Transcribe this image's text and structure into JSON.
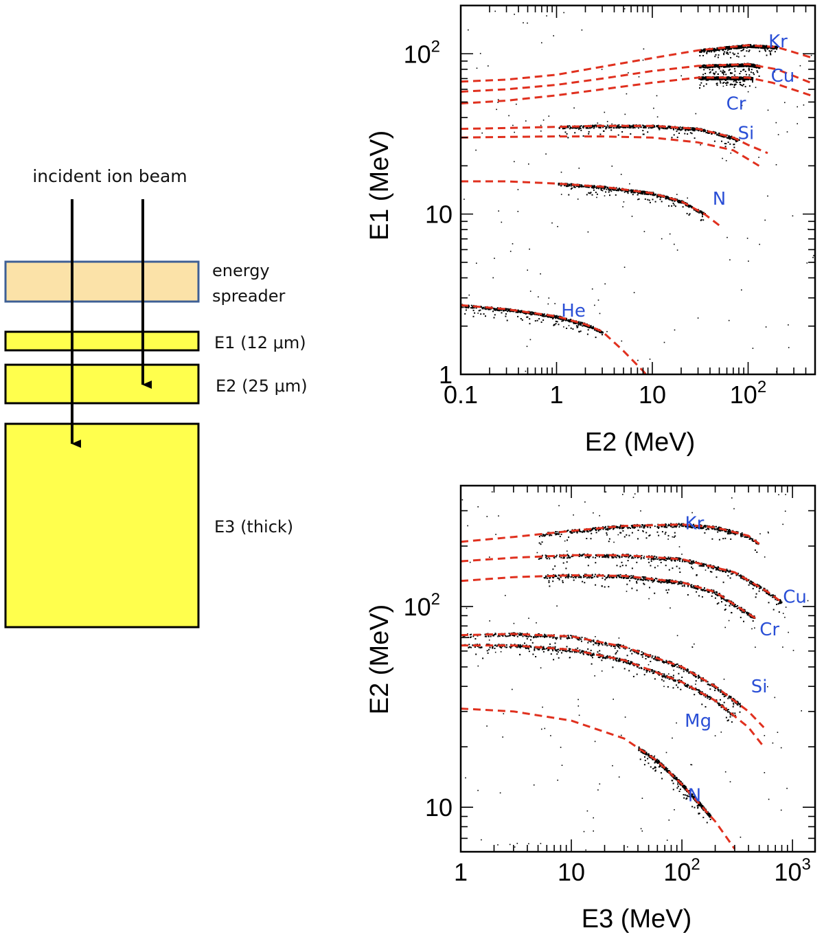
{
  "diagram": {
    "beam_label": "incident ion beam",
    "spreader_label_1": "energy",
    "spreader_label_2": "spreader",
    "e1_label": "E1 (12 μm)",
    "e2_label": "E2 (25 μm)",
    "e3_label": "E3 (thick)",
    "colors": {
      "spreader_fill": "#fbe2a8",
      "spreader_border": "#3e5f95",
      "detector_fill": "#ffff4d",
      "arrow": "#000000"
    }
  },
  "chart_data": [
    {
      "type": "scatter",
      "title": "",
      "xlabel": "E2 (MeV)",
      "ylabel": "E1 (MeV)",
      "xscale": "log",
      "yscale": "log",
      "xlim": [
        0.1,
        500
      ],
      "ylim": [
        1,
        200
      ],
      "xticks": [
        {
          "v": 0.1,
          "base": "0.1",
          "exp": ""
        },
        {
          "v": 1,
          "base": "1",
          "exp": ""
        },
        {
          "v": 10,
          "base": "10",
          "exp": ""
        },
        {
          "v": 100,
          "base": "10",
          "exp": "2"
        }
      ],
      "yticks": [
        {
          "v": 1,
          "base": "1",
          "exp": ""
        },
        {
          "v": 10,
          "base": "10",
          "exp": ""
        },
        {
          "v": 100,
          "base": "10",
          "exp": "2"
        }
      ],
      "line_color": "#e0301e",
      "point_color": "#000000",
      "series": [
        {
          "name": "Kr",
          "label_at": [
            205,
            120
          ],
          "curve": [
            [
              0.1,
              67
            ],
            [
              0.3,
              69
            ],
            [
              1,
              74
            ],
            [
              3,
              83
            ],
            [
              10,
              94
            ],
            [
              30,
              105
            ],
            [
              100,
              113
            ],
            [
              200,
              110
            ],
            [
              450,
              95
            ]
          ],
          "data_range": [
            30,
            200
          ]
        },
        {
          "name": "Cu",
          "label_at": [
            230,
            73
          ],
          "curve": [
            [
              0.1,
              58
            ],
            [
              0.3,
              60
            ],
            [
              1,
              64
            ],
            [
              3,
              70
            ],
            [
              10,
              78
            ],
            [
              30,
              84
            ],
            [
              100,
              86
            ],
            [
              200,
              80
            ],
            [
              450,
              66
            ]
          ],
          "data_range": [
            30,
            130
          ]
        },
        {
          "name": "Cr",
          "label_at": [
            75,
            49
          ],
          "curve": [
            [
              0.1,
              49
            ],
            [
              0.3,
              51
            ],
            [
              1,
              55
            ],
            [
              3,
              60
            ],
            [
              10,
              66
            ],
            [
              30,
              71
            ],
            [
              100,
              71
            ],
            [
              180,
              66
            ],
            [
              450,
              55
            ]
          ],
          "data_range": [
            30,
            110
          ]
        },
        {
          "name": "Si",
          "label_at": [
            95,
            32
          ],
          "curve": [
            [
              0.1,
              34
            ],
            [
              0.3,
              34.4
            ],
            [
              1,
              35
            ],
            [
              3,
              35.5
            ],
            [
              10,
              35.5
            ],
            [
              30,
              34
            ],
            [
              70,
              30
            ],
            [
              100,
              27
            ],
            [
              160,
              24
            ]
          ],
          "data_range": [
            1,
            80
          ]
        },
        {
          "name": "",
          "label_at": null,
          "curve": [
            [
              0.1,
              30
            ],
            [
              0.3,
              30.3
            ],
            [
              1,
              30.5
            ],
            [
              3,
              30.5
            ],
            [
              10,
              30
            ],
            [
              30,
              28
            ],
            [
              70,
              25
            ],
            [
              100,
              22
            ],
            [
              130,
              20
            ]
          ],
          "data_range": null
        },
        {
          "name": "N",
          "label_at": [
            50,
            12.5
          ],
          "curve": [
            [
              0.1,
              16
            ],
            [
              0.3,
              16
            ],
            [
              1,
              15.5
            ],
            [
              3,
              14.8
            ],
            [
              10,
              13.5
            ],
            [
              20,
              12
            ],
            [
              35,
              10
            ],
            [
              50,
              8.5
            ]
          ],
          "data_range": [
            1,
            35
          ]
        },
        {
          "name": "He",
          "label_at": [
            1.5,
            2.5
          ],
          "curve": [
            [
              0.1,
              2.7
            ],
            [
              0.3,
              2.55
            ],
            [
              1,
              2.3
            ],
            [
              2,
              2.05
            ],
            [
              3,
              1.85
            ],
            [
              5,
              1.4
            ],
            [
              8,
              1.05
            ],
            [
              10,
              0.9
            ]
          ],
          "data_range": [
            0.1,
            3
          ]
        }
      ]
    },
    {
      "type": "scatter",
      "title": "",
      "xlabel": "E3 (MeV)",
      "ylabel": "E2 (MeV)",
      "xscale": "log",
      "yscale": "log",
      "xlim": [
        1,
        1600
      ],
      "ylim": [
        6,
        400
      ],
      "xticks": [
        {
          "v": 1,
          "base": "1",
          "exp": ""
        },
        {
          "v": 10,
          "base": "10",
          "exp": ""
        },
        {
          "v": 100,
          "base": "10",
          "exp": "2"
        },
        {
          "v": 1000,
          "base": "10",
          "exp": "3"
        }
      ],
      "yticks": [
        {
          "v": 10,
          "base": "10",
          "exp": ""
        },
        {
          "v": 100,
          "base": "10",
          "exp": "2"
        }
      ],
      "line_color": "#e0301e",
      "point_color": "#000000",
      "series": [
        {
          "name": "Kr",
          "label_at": [
            130,
            260
          ],
          "curve": [
            [
              1,
              210
            ],
            [
              3,
              222
            ],
            [
              10,
              238
            ],
            [
              30,
              252
            ],
            [
              100,
              256
            ],
            [
              200,
              248
            ],
            [
              400,
              225
            ],
            [
              500,
              205
            ]
          ],
          "data_range": [
            5,
            500
          ]
        },
        {
          "name": "Cu",
          "label_at": [
            1050,
            112
          ],
          "curve": [
            [
              1,
              168
            ],
            [
              3,
              175
            ],
            [
              10,
              180
            ],
            [
              30,
              180
            ],
            [
              100,
              172
            ],
            [
              300,
              148
            ],
            [
              600,
              118
            ],
            [
              800,
              105
            ]
          ],
          "data_range": [
            5,
            800
          ]
        },
        {
          "name": "Cr",
          "label_at": [
            620,
            77
          ],
          "curve": [
            [
              1,
              134
            ],
            [
              3,
              140
            ],
            [
              10,
              143
            ],
            [
              30,
              142
            ],
            [
              100,
              132
            ],
            [
              200,
              118
            ],
            [
              400,
              92
            ],
            [
              500,
              85
            ]
          ],
          "data_range": [
            5,
            450
          ]
        },
        {
          "name": "Si",
          "label_at": [
            500,
            40
          ],
          "curve": [
            [
              1,
              72
            ],
            [
              3,
              73
            ],
            [
              10,
              71
            ],
            [
              30,
              63
            ],
            [
              100,
              50
            ],
            [
              200,
              40
            ],
            [
              400,
              30
            ],
            [
              550,
              25
            ]
          ],
          "data_range": [
            1,
            350
          ]
        },
        {
          "name": "Mg",
          "label_at": [
            140,
            27
          ],
          "curve": [
            [
              1,
              64
            ],
            [
              3,
              64
            ],
            [
              10,
              61
            ],
            [
              30,
              54
            ],
            [
              100,
              42
            ],
            [
              200,
              34
            ],
            [
              400,
              25
            ],
            [
              550,
              20
            ]
          ],
          "data_range": [
            1,
            300
          ]
        },
        {
          "name": "N",
          "label_at": [
            130,
            11.5
          ],
          "curve": [
            [
              1,
              31
            ],
            [
              3,
              30
            ],
            [
              10,
              27
            ],
            [
              30,
              22
            ],
            [
              60,
              17
            ],
            [
              100,
              13
            ],
            [
              200,
              8.5
            ],
            [
              300,
              6.2
            ]
          ],
          "data_range": [
            40,
            180
          ]
        }
      ]
    }
  ]
}
